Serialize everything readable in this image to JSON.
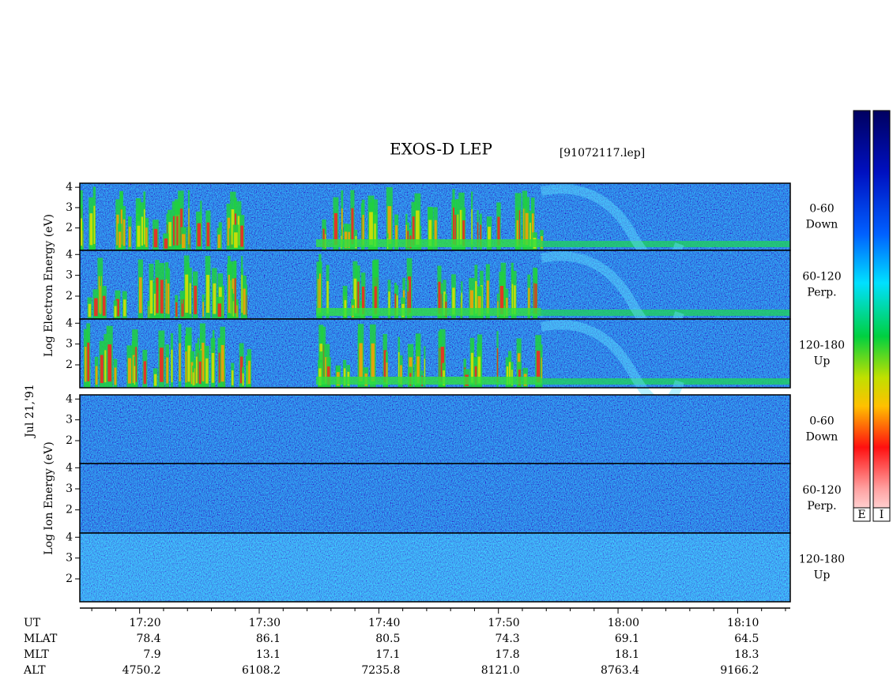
{
  "title": "EXOS-D LEP",
  "file": "[91072117.lep]",
  "date": "Jul 21,'91",
  "chart_data": {
    "type": "spectrogram",
    "xlim": [
      1035,
      1094.4
    ],
    "xticks": [
      {
        "value": 1040,
        "label": "17:20"
      },
      {
        "value": 1050,
        "label": "17:30"
      },
      {
        "value": 1060,
        "label": "17:40"
      },
      {
        "value": 1070,
        "label": "17:50"
      },
      {
        "value": 1080,
        "label": "18:00"
      },
      {
        "value": 1090,
        "label": "18:10"
      }
    ],
    "xminor": [
      1036,
      1038,
      1042,
      1044,
      1046,
      1048,
      1052,
      1054,
      1056,
      1058,
      1062,
      1064,
      1066,
      1068,
      1072,
      1074,
      1076,
      1078,
      1082,
      1084,
      1086,
      1088,
      1092,
      1094
    ],
    "panel_groups": [
      {
        "ylabel": "Log Electron Energy (eV)",
        "ylim": [
          0.9,
          4.2
        ],
        "yticks": [
          2,
          3,
          4
        ],
        "panels": [
          {
            "angle": "0-60",
            "direction": "Down"
          },
          {
            "angle": "60-120",
            "direction": "Perp."
          },
          {
            "angle": "120-180",
            "direction": "Up"
          }
        ]
      },
      {
        "ylabel": "Log Ion Energy (eV)",
        "ylim": [
          0.9,
          4.2
        ],
        "yticks": [
          2,
          3,
          4
        ],
        "panels": [
          {
            "angle": "0-60",
            "direction": "Down"
          },
          {
            "angle": "60-120",
            "direction": "Perp."
          },
          {
            "angle": "120-180",
            "direction": "Up"
          }
        ]
      }
    ]
  },
  "ephemeris": {
    "labels": [
      "UT",
      "MLAT",
      "MLT",
      "ALT"
    ],
    "rows": [
      [
        "78.4",
        "86.1",
        "80.5",
        "74.3",
        "69.1",
        "64.5"
      ],
      [
        "7.9",
        "13.1",
        "17.1",
        "17.8",
        "18.1",
        "18.3"
      ],
      [
        "4750.2",
        "6108.2",
        "7235.8",
        "8121.0",
        "8763.4",
        "9166.2"
      ]
    ]
  },
  "colorbars": [
    "E",
    "I"
  ]
}
